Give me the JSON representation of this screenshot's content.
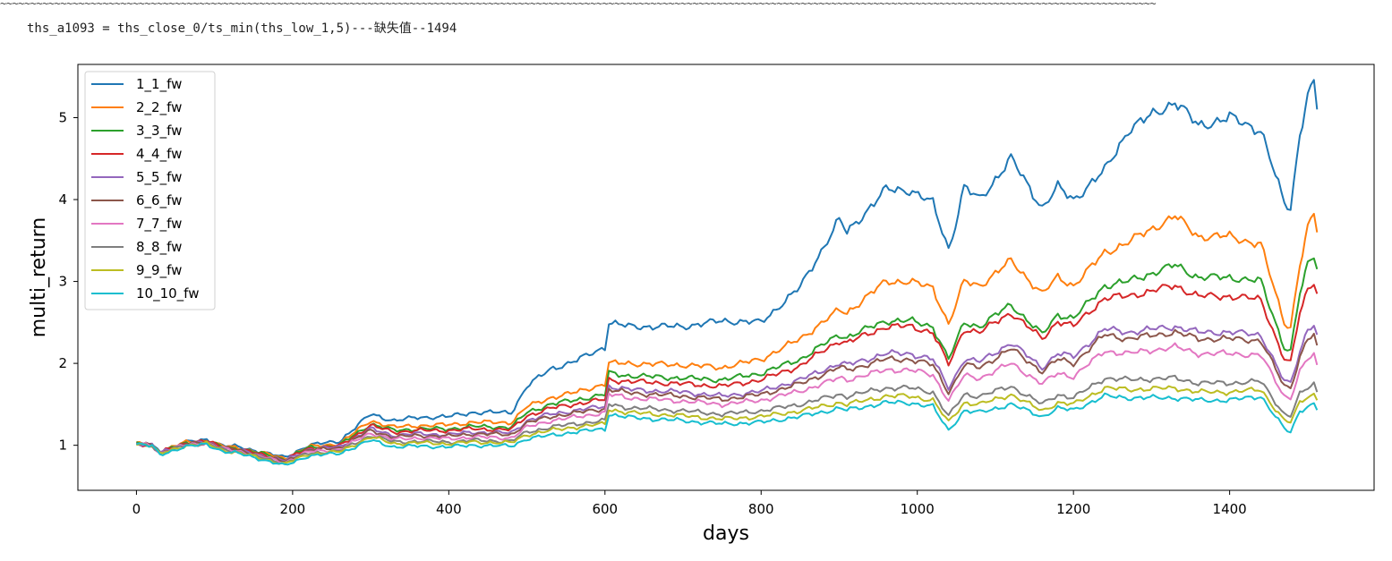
{
  "page": {
    "top_rule": "~~~~~~~~~~~~~~~~~~~~~~~~~~~~~~~~~~~~~~~~~~~~~~~~~~~~~~~~~~~~~~~~~~~~~~~~~~~~~~~~~~~~~~~~~~~~~~~~~~~~~~~~~~~~~~~~~~~~~~~~~~~~~~~~~~~~~~~~~~~~~~~~~~~~~~~~~~~~~~~~~~~~~~~~~~~~~~~~~~~~~~~~~~~~~~~~",
    "output_line": "ths_a1093 = ths_close_0/ts_min(ths_low_1,5)---缺失值--1494"
  },
  "chart_data": {
    "type": "line",
    "xlabel": "days",
    "ylabel": "multi_return",
    "xlim": [
      -75,
      1585
    ],
    "ylim": [
      0.45,
      5.65
    ],
    "xticks": [
      0,
      200,
      400,
      600,
      800,
      1000,
      1200,
      1400
    ],
    "yticks": [
      1,
      2,
      3,
      4,
      5
    ],
    "legend_placement": "upper-left",
    "grid": false,
    "series": [
      {
        "name": "1_1_fw",
        "color": "#1f77b4",
        "x": [
          0,
          20,
          30,
          60,
          90,
          110,
          130,
          160,
          190,
          220,
          260,
          300,
          330,
          360,
          400,
          430,
          480,
          500,
          530,
          560,
          600,
          605,
          630,
          700,
          750,
          800,
          850,
          900,
          910,
          960,
          990,
          1020,
          1040,
          1045,
          1060,
          1080,
          1120,
          1160,
          1180,
          1200,
          1240,
          1270,
          1330,
          1360,
          1400,
          1440,
          1470,
          1478,
          1490,
          1500,
          1508,
          1512
        ],
        "y": [
          1.02,
          1.0,
          0.92,
          1.03,
          1.07,
          1.0,
          0.98,
          0.92,
          0.85,
          1.0,
          1.05,
          1.38,
          1.3,
          1.34,
          1.35,
          1.4,
          1.4,
          1.72,
          1.93,
          2.02,
          2.2,
          2.5,
          2.45,
          2.45,
          2.52,
          2.5,
          2.93,
          3.75,
          3.6,
          4.12,
          4.12,
          3.95,
          3.4,
          3.55,
          4.15,
          4.0,
          4.5,
          3.9,
          4.15,
          4.0,
          4.35,
          4.85,
          5.2,
          4.9,
          5.0,
          4.85,
          3.95,
          3.9,
          4.8,
          5.3,
          5.4,
          5.1
        ]
      },
      {
        "name": "2_2_fw",
        "color": "#ff7f0e",
        "x": [
          0,
          20,
          30,
          60,
          90,
          110,
          130,
          160,
          190,
          220,
          260,
          300,
          330,
          360,
          400,
          430,
          480,
          500,
          530,
          560,
          600,
          605,
          630,
          700,
          750,
          800,
          850,
          900,
          910,
          960,
          990,
          1020,
          1040,
          1045,
          1060,
          1080,
          1120,
          1160,
          1180,
          1200,
          1240,
          1270,
          1330,
          1360,
          1400,
          1440,
          1470,
          1478,
          1490,
          1500,
          1508,
          1512
        ],
        "y": [
          1.02,
          1.0,
          0.92,
          1.03,
          1.06,
          0.99,
          0.97,
          0.91,
          0.84,
          0.98,
          1.02,
          1.3,
          1.22,
          1.24,
          1.25,
          1.28,
          1.28,
          1.47,
          1.58,
          1.64,
          1.75,
          2.0,
          2.0,
          1.98,
          1.95,
          2.05,
          2.3,
          2.65,
          2.62,
          3.0,
          3.0,
          2.92,
          2.48,
          2.6,
          3.0,
          2.95,
          3.25,
          2.85,
          3.05,
          2.95,
          3.35,
          3.48,
          3.8,
          3.55,
          3.55,
          3.45,
          2.5,
          2.45,
          3.2,
          3.65,
          3.8,
          3.6
        ]
      },
      {
        "name": "3_3_fw",
        "color": "#2ca02c",
        "x": [
          0,
          20,
          30,
          60,
          90,
          110,
          130,
          160,
          190,
          220,
          260,
          300,
          330,
          360,
          400,
          430,
          480,
          500,
          530,
          560,
          600,
          605,
          630,
          700,
          750,
          800,
          850,
          900,
          910,
          960,
          990,
          1020,
          1040,
          1045,
          1060,
          1080,
          1120,
          1160,
          1180,
          1200,
          1240,
          1270,
          1330,
          1360,
          1400,
          1440,
          1470,
          1478,
          1490,
          1500,
          1508,
          1512
        ],
        "y": [
          1.02,
          1.0,
          0.91,
          1.02,
          1.05,
          0.98,
          0.96,
          0.9,
          0.83,
          0.97,
          1.0,
          1.26,
          1.18,
          1.2,
          1.2,
          1.23,
          1.22,
          1.4,
          1.5,
          1.55,
          1.62,
          1.88,
          1.85,
          1.82,
          1.8,
          1.88,
          2.05,
          2.35,
          2.32,
          2.52,
          2.52,
          2.45,
          2.05,
          2.15,
          2.5,
          2.45,
          2.72,
          2.35,
          2.6,
          2.55,
          2.95,
          3.0,
          3.2,
          3.05,
          3.05,
          3.0,
          2.2,
          2.15,
          2.85,
          3.2,
          3.3,
          3.15
        ]
      },
      {
        "name": "4_4_fw",
        "color": "#d62728",
        "x": [
          0,
          20,
          30,
          60,
          90,
          110,
          130,
          160,
          190,
          220,
          260,
          300,
          330,
          360,
          400,
          430,
          480,
          500,
          530,
          560,
          600,
          605,
          630,
          700,
          750,
          800,
          850,
          900,
          910,
          960,
          990,
          1020,
          1040,
          1045,
          1060,
          1080,
          1120,
          1160,
          1180,
          1200,
          1240,
          1270,
          1330,
          1360,
          1400,
          1440,
          1470,
          1478,
          1490,
          1500,
          1508,
          1512
        ],
        "y": [
          1.02,
          1.0,
          0.91,
          1.02,
          1.05,
          0.98,
          0.95,
          0.89,
          0.82,
          0.96,
          0.99,
          1.24,
          1.16,
          1.18,
          1.18,
          1.2,
          1.19,
          1.36,
          1.45,
          1.5,
          1.56,
          1.8,
          1.78,
          1.75,
          1.72,
          1.8,
          1.97,
          2.28,
          2.25,
          2.45,
          2.45,
          2.38,
          1.98,
          2.08,
          2.42,
          2.38,
          2.62,
          2.3,
          2.52,
          2.45,
          2.8,
          2.82,
          2.95,
          2.82,
          2.82,
          2.78,
          2.05,
          2.0,
          2.62,
          2.9,
          3.0,
          2.85
        ]
      },
      {
        "name": "5_5_fw",
        "color": "#9467bd",
        "x": [
          0,
          20,
          30,
          60,
          90,
          110,
          130,
          160,
          190,
          220,
          260,
          300,
          330,
          360,
          400,
          430,
          480,
          500,
          530,
          560,
          600,
          605,
          630,
          700,
          750,
          800,
          850,
          900,
          910,
          960,
          990,
          1020,
          1040,
          1045,
          1060,
          1080,
          1120,
          1160,
          1180,
          1200,
          1240,
          1270,
          1330,
          1360,
          1400,
          1440,
          1470,
          1478,
          1490,
          1500,
          1508,
          1512
        ],
        "y": [
          1.02,
          1.0,
          0.91,
          1.01,
          1.04,
          0.97,
          0.94,
          0.88,
          0.81,
          0.95,
          0.98,
          1.2,
          1.12,
          1.14,
          1.13,
          1.16,
          1.15,
          1.3,
          1.38,
          1.42,
          1.48,
          1.72,
          1.68,
          1.65,
          1.6,
          1.66,
          1.8,
          2.0,
          1.98,
          2.12,
          2.12,
          2.05,
          1.7,
          1.78,
          2.05,
          2.02,
          2.25,
          1.95,
          2.12,
          2.08,
          2.42,
          2.38,
          2.45,
          2.38,
          2.38,
          2.35,
          1.78,
          1.75,
          2.15,
          2.42,
          2.48,
          2.35
        ]
      },
      {
        "name": "6_6_fw",
        "color": "#8c564b",
        "x": [
          0,
          20,
          30,
          60,
          90,
          110,
          130,
          160,
          190,
          220,
          260,
          300,
          330,
          360,
          400,
          430,
          480,
          500,
          530,
          560,
          600,
          605,
          630,
          700,
          750,
          800,
          850,
          900,
          910,
          960,
          990,
          1020,
          1040,
          1045,
          1060,
          1080,
          1120,
          1160,
          1180,
          1200,
          1240,
          1270,
          1330,
          1360,
          1400,
          1440,
          1470,
          1478,
          1490,
          1500,
          1508,
          1512
        ],
        "y": [
          1.02,
          1.0,
          0.9,
          1.01,
          1.04,
          0.97,
          0.94,
          0.87,
          0.8,
          0.94,
          0.97,
          1.18,
          1.1,
          1.12,
          1.11,
          1.14,
          1.13,
          1.27,
          1.35,
          1.39,
          1.45,
          1.68,
          1.64,
          1.6,
          1.56,
          1.62,
          1.75,
          1.95,
          1.92,
          2.05,
          2.05,
          1.98,
          1.65,
          1.72,
          1.98,
          1.95,
          2.18,
          1.9,
          2.05,
          2.0,
          2.35,
          2.3,
          2.38,
          2.3,
          2.3,
          2.28,
          1.72,
          1.7,
          2.08,
          2.3,
          2.35,
          2.22
        ]
      },
      {
        "name": "7_7_fw",
        "color": "#e377c2",
        "x": [
          0,
          20,
          30,
          60,
          90,
          110,
          130,
          160,
          190,
          220,
          260,
          300,
          330,
          360,
          400,
          430,
          480,
          500,
          530,
          560,
          600,
          605,
          630,
          700,
          750,
          800,
          850,
          900,
          910,
          960,
          990,
          1020,
          1040,
          1045,
          1060,
          1080,
          1120,
          1160,
          1180,
          1200,
          1240,
          1270,
          1330,
          1360,
          1400,
          1440,
          1470,
          1478,
          1490,
          1500,
          1508,
          1512
        ],
        "y": [
          1.02,
          1.0,
          0.9,
          1.0,
          1.03,
          0.96,
          0.93,
          0.86,
          0.79,
          0.92,
          0.95,
          1.15,
          1.07,
          1.09,
          1.08,
          1.1,
          1.09,
          1.22,
          1.3,
          1.34,
          1.4,
          1.62,
          1.58,
          1.54,
          1.5,
          1.55,
          1.66,
          1.82,
          1.8,
          1.92,
          1.92,
          1.86,
          1.55,
          1.62,
          1.85,
          1.82,
          2.0,
          1.75,
          1.88,
          1.84,
          2.15,
          2.12,
          2.2,
          2.12,
          2.12,
          2.1,
          1.6,
          1.58,
          1.9,
          2.05,
          2.1,
          1.98
        ]
      },
      {
        "name": "8_8_fw",
        "color": "#7f7f7f",
        "x": [
          0,
          20,
          30,
          60,
          90,
          110,
          130,
          160,
          190,
          220,
          260,
          300,
          330,
          360,
          400,
          430,
          480,
          500,
          530,
          560,
          600,
          605,
          630,
          700,
          750,
          800,
          850,
          900,
          910,
          960,
          990,
          1020,
          1040,
          1045,
          1060,
          1080,
          1120,
          1160,
          1180,
          1200,
          1240,
          1270,
          1330,
          1360,
          1400,
          1440,
          1470,
          1478,
          1490,
          1500,
          1508,
          1512
        ],
        "y": [
          1.02,
          1.0,
          0.89,
          1.0,
          1.02,
          0.95,
          0.92,
          0.85,
          0.78,
          0.9,
          0.93,
          1.12,
          1.04,
          1.05,
          1.04,
          1.06,
          1.05,
          1.16,
          1.22,
          1.26,
          1.3,
          1.5,
          1.46,
          1.42,
          1.38,
          1.42,
          1.5,
          1.62,
          1.6,
          1.7,
          1.7,
          1.65,
          1.35,
          1.42,
          1.62,
          1.6,
          1.72,
          1.5,
          1.62,
          1.58,
          1.82,
          1.8,
          1.82,
          1.76,
          1.76,
          1.78,
          1.38,
          1.36,
          1.62,
          1.7,
          1.75,
          1.65
        ]
      },
      {
        "name": "9_9_fw",
        "color": "#bcbd22",
        "x": [
          0,
          20,
          30,
          60,
          90,
          110,
          130,
          160,
          190,
          220,
          260,
          300,
          330,
          360,
          400,
          430,
          480,
          500,
          530,
          560,
          600,
          605,
          630,
          700,
          750,
          800,
          850,
          900,
          910,
          960,
          990,
          1020,
          1040,
          1045,
          1060,
          1080,
          1120,
          1160,
          1180,
          1200,
          1240,
          1270,
          1330,
          1360,
          1400,
          1440,
          1470,
          1478,
          1490,
          1500,
          1508,
          1512
        ],
        "y": [
          1.02,
          1.0,
          0.89,
          0.99,
          1.02,
          0.94,
          0.91,
          0.84,
          0.77,
          0.89,
          0.92,
          1.1,
          1.02,
          1.03,
          1.02,
          1.04,
          1.03,
          1.13,
          1.18,
          1.22,
          1.26,
          1.44,
          1.4,
          1.36,
          1.32,
          1.35,
          1.42,
          1.52,
          1.5,
          1.6,
          1.6,
          1.55,
          1.28,
          1.34,
          1.52,
          1.5,
          1.62,
          1.42,
          1.52,
          1.5,
          1.7,
          1.68,
          1.7,
          1.65,
          1.65,
          1.68,
          1.3,
          1.28,
          1.52,
          1.6,
          1.62,
          1.55
        ]
      },
      {
        "name": "10_10_fw",
        "color": "#17becf",
        "x": [
          0,
          20,
          30,
          60,
          90,
          110,
          130,
          160,
          190,
          220,
          260,
          300,
          330,
          360,
          400,
          430,
          480,
          500,
          530,
          560,
          600,
          605,
          630,
          700,
          750,
          800,
          850,
          900,
          910,
          960,
          990,
          1020,
          1040,
          1045,
          1060,
          1080,
          1120,
          1160,
          1180,
          1200,
          1240,
          1270,
          1330,
          1360,
          1400,
          1440,
          1470,
          1478,
          1490,
          1500,
          1508,
          1512
        ],
        "y": [
          1.02,
          0.99,
          0.88,
          0.98,
          1.01,
          0.93,
          0.9,
          0.83,
          0.75,
          0.87,
          0.9,
          1.06,
          0.98,
          0.99,
          0.98,
          1.0,
          0.99,
          1.08,
          1.12,
          1.16,
          1.2,
          1.38,
          1.34,
          1.3,
          1.26,
          1.28,
          1.35,
          1.45,
          1.43,
          1.52,
          1.52,
          1.47,
          1.18,
          1.24,
          1.42,
          1.4,
          1.5,
          1.35,
          1.45,
          1.43,
          1.6,
          1.58,
          1.58,
          1.55,
          1.55,
          1.6,
          1.2,
          1.16,
          1.42,
          1.48,
          1.5,
          1.43
        ]
      }
    ]
  }
}
